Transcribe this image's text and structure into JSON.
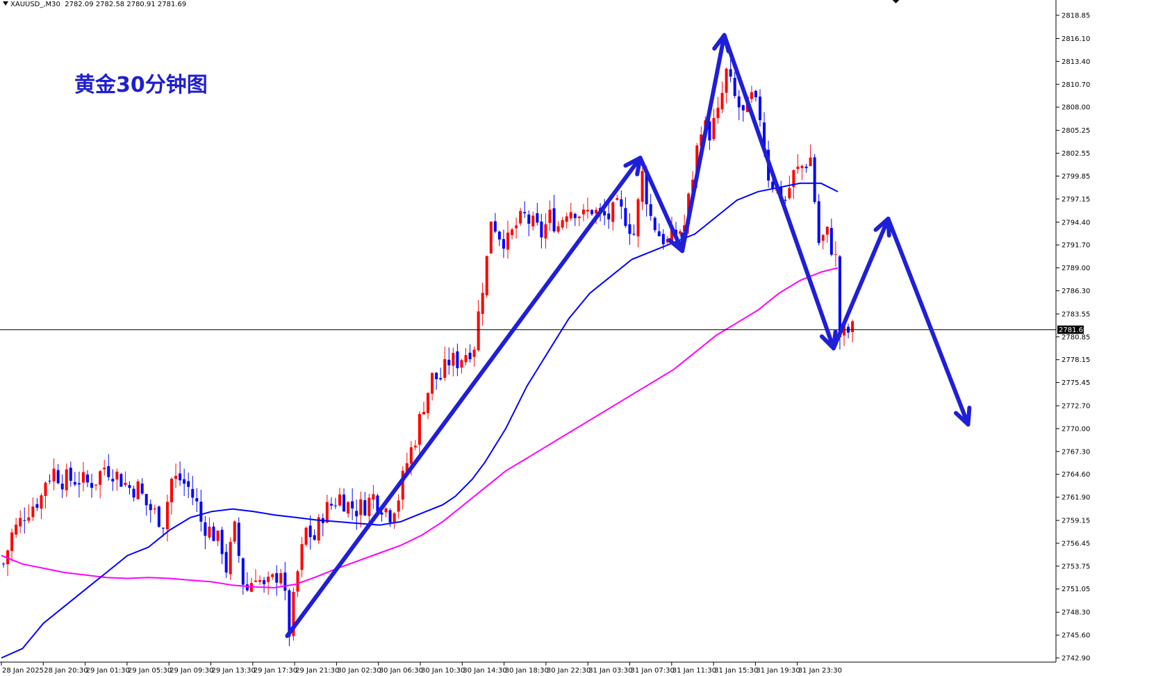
{
  "header": {
    "symbol": "XAUUSD_,M30",
    "ohlc": "2782.09 2782.58 2780.91 2781.69"
  },
  "annotation_title": "黄金30分钟图",
  "colors": {
    "background": "#ffffff",
    "bull_candle": "#ff0000",
    "bear_candle": "#0000ff",
    "ma_fast": "#0000ff",
    "ma_slow": "#ff00ff",
    "projection_arrows": "#1f1fd8",
    "current_price_line": "#000000"
  },
  "chart_data": {
    "type": "candlestick",
    "symbol": "XAUUSD_",
    "timeframe": "M30",
    "ylim": [
      2742.3,
      2820.0
    ],
    "y_ticks": [
      "2818.85",
      "2816.10",
      "2813.40",
      "2810.70",
      "2808.00",
      "2805.25",
      "2802.55",
      "2799.85",
      "2797.15",
      "2794.40",
      "2791.70",
      "2789.00",
      "2786.30",
      "2783.55",
      "2780.85",
      "2778.15",
      "2775.45",
      "2772.70",
      "2770.00",
      "2767.30",
      "2764.60",
      "2761.90",
      "2759.15",
      "2756.45",
      "2753.75",
      "2751.05",
      "2748.30",
      "2745.60",
      "2742.90"
    ],
    "current_price": "2781.69",
    "x_labels": [
      "28 Jan 2025",
      "28 Jan 20:30",
      "29 Jan 01:30",
      "29 Jan 05:30",
      "29 Jan 09:30",
      "29 Jan 13:30",
      "29 Jan 17:30",
      "29 Jan 21:30",
      "30 Jan 02:30",
      "30 Jan 06:30",
      "30 Jan 10:30",
      "30 Jan 14:30",
      "30 Jan 18:30",
      "30 Jan 22:30",
      "31 Jan 03:30",
      "31 Jan 07:30",
      "31 Jan 11:30",
      "31 Jan 15:30",
      "31 Jan 19:30",
      "31 Jan 23:30"
    ],
    "price_path": [
      [
        0,
        2754
      ],
      [
        2,
        2757.5
      ],
      [
        4,
        2759
      ],
      [
        5,
        2760
      ],
      [
        7,
        2761
      ],
      [
        9,
        2762
      ],
      [
        10,
        2764
      ],
      [
        12,
        2765
      ],
      [
        14,
        2764
      ],
      [
        16,
        2764
      ],
      [
        18,
        2764
      ],
      [
        20,
        2763.5
      ],
      [
        22,
        2764
      ],
      [
        24,
        2765.5
      ],
      [
        26,
        2765
      ],
      [
        28,
        2764
      ],
      [
        30,
        2763
      ],
      [
        32,
        2763
      ],
      [
        34,
        2761
      ],
      [
        36,
        2760
      ],
      [
        38,
        2759
      ],
      [
        40,
        2764
      ],
      [
        42,
        2764
      ],
      [
        44,
        2763
      ],
      [
        46,
        2761
      ],
      [
        47,
        2759
      ],
      [
        48,
        2758.5
      ],
      [
        50,
        2757.5
      ],
      [
        52,
        2756
      ],
      [
        53,
        2753.5
      ],
      [
        55,
        2758
      ],
      [
        57,
        2752
      ],
      [
        58,
        2751
      ],
      [
        60,
        2753
      ],
      [
        62,
        2751
      ],
      [
        64,
        2752
      ],
      [
        66,
        2753.5
      ],
      [
        68,
        2746
      ],
      [
        70,
        2753
      ],
      [
        72,
        2758
      ],
      [
        74,
        2757
      ],
      [
        76,
        2760
      ],
      [
        78,
        2761
      ],
      [
        80,
        2762
      ],
      [
        82,
        2761
      ],
      [
        84,
        2760.5
      ],
      [
        86,
        2761
      ],
      [
        88,
        2762
      ],
      [
        90,
        2761
      ],
      [
        92,
        2760
      ],
      [
        94,
        2762
      ],
      [
        96,
        2766
      ],
      [
        98,
        2769
      ],
      [
        100,
        2773
      ],
      [
        102,
        2776
      ],
      [
        104,
        2776
      ],
      [
        106,
        2778
      ],
      [
        108,
        2778
      ],
      [
        110,
        2779
      ],
      [
        112,
        2780
      ],
      [
        114,
        2787
      ],
      [
        115,
        2790
      ],
      [
        116,
        2795
      ],
      [
        118,
        2793
      ],
      [
        120,
        2792
      ],
      [
        122,
        2794
      ],
      [
        124,
        2795
      ],
      [
        126,
        2794
      ],
      [
        128,
        2793
      ],
      [
        130,
        2795
      ],
      [
        132,
        2794
      ],
      [
        134,
        2796
      ],
      [
        136,
        2796
      ],
      [
        138,
        2795
      ],
      [
        140,
        2796
      ],
      [
        142,
        2795
      ],
      [
        144,
        2795
      ],
      [
        146,
        2796
      ],
      [
        148,
        2795
      ],
      [
        150,
        2793
      ],
      [
        152,
        2800
      ],
      [
        154,
        2795
      ],
      [
        156,
        2793
      ],
      [
        158,
        2792
      ],
      [
        160,
        2793
      ],
      [
        162,
        2794
      ],
      [
        164,
        2800
      ],
      [
        166,
        2806
      ],
      [
        168,
        2805
      ],
      [
        170,
        2807
      ],
      [
        172,
        2812
      ],
      [
        174,
        2809
      ],
      [
        176,
        2807
      ],
      [
        178,
        2809
      ],
      [
        180,
        2807
      ],
      [
        182,
        2800
      ],
      [
        184,
        2798
      ],
      [
        186,
        2797
      ],
      [
        188,
        2800
      ],
      [
        190,
        2801
      ],
      [
        192,
        2802
      ],
      [
        194,
        2792
      ],
      [
        196,
        2793
      ],
      [
        198,
        2790
      ],
      [
        199,
        2781
      ],
      [
        202,
        2781.69
      ]
    ],
    "ma_fast_path": [
      [
        0,
        2742.9
      ],
      [
        5,
        2744
      ],
      [
        10,
        2747
      ],
      [
        15,
        2749
      ],
      [
        20,
        2751
      ],
      [
        25,
        2753
      ],
      [
        30,
        2755
      ],
      [
        35,
        2756
      ],
      [
        40,
        2758
      ],
      [
        45,
        2759.5
      ],
      [
        50,
        2760.2
      ],
      [
        55,
        2760.5
      ],
      [
        60,
        2760.2
      ],
      [
        65,
        2759.8
      ],
      [
        70,
        2759.5
      ],
      [
        75,
        2759.2
      ],
      [
        80,
        2759
      ],
      [
        85,
        2758.8
      ],
      [
        90,
        2758.6
      ],
      [
        95,
        2759
      ],
      [
        100,
        2760
      ],
      [
        105,
        2761
      ],
      [
        108,
        2762
      ],
      [
        110,
        2763
      ],
      [
        112,
        2764
      ],
      [
        115,
        2766
      ],
      [
        120,
        2770
      ],
      [
        125,
        2775
      ],
      [
        130,
        2779
      ],
      [
        135,
        2783
      ],
      [
        140,
        2786
      ],
      [
        145,
        2788
      ],
      [
        150,
        2790
      ],
      [
        155,
        2791
      ],
      [
        160,
        2792
      ],
      [
        165,
        2793
      ],
      [
        170,
        2795
      ],
      [
        175,
        2797
      ],
      [
        180,
        2798
      ],
      [
        185,
        2798.5
      ],
      [
        190,
        2799
      ],
      [
        195,
        2799
      ],
      [
        199,
        2798
      ]
    ],
    "ma_slow_path": [
      [
        0,
        2755
      ],
      [
        5,
        2754
      ],
      [
        10,
        2753.5
      ],
      [
        15,
        2753
      ],
      [
        20,
        2752.7
      ],
      [
        25,
        2752.4
      ],
      [
        30,
        2752.3
      ],
      [
        35,
        2752.4
      ],
      [
        40,
        2752.3
      ],
      [
        45,
        2752.1
      ],
      [
        50,
        2751.9
      ],
      [
        55,
        2751.5
      ],
      [
        60,
        2751.3
      ],
      [
        65,
        2751.2
      ],
      [
        70,
        2751.6
      ],
      [
        75,
        2752.5
      ],
      [
        80,
        2753.5
      ],
      [
        85,
        2754.4
      ],
      [
        90,
        2755.3
      ],
      [
        95,
        2756.2
      ],
      [
        100,
        2757.4
      ],
      [
        105,
        2759
      ],
      [
        110,
        2761
      ],
      [
        115,
        2763
      ],
      [
        120,
        2765
      ],
      [
        125,
        2766.5
      ],
      [
        130,
        2768
      ],
      [
        135,
        2769.5
      ],
      [
        140,
        2771
      ],
      [
        145,
        2772.5
      ],
      [
        150,
        2774
      ],
      [
        155,
        2775.5
      ],
      [
        160,
        2777
      ],
      [
        165,
        2779
      ],
      [
        170,
        2781
      ],
      [
        175,
        2782.5
      ],
      [
        180,
        2784
      ],
      [
        185,
        2786
      ],
      [
        190,
        2787.5
      ],
      [
        195,
        2788.5
      ],
      [
        199,
        2789
      ]
    ],
    "projection_arrows": [
      [
        [
          68,
          2745.5
        ],
        [
          152,
          2802
        ]
      ],
      [
        [
          152,
          2802
        ],
        [
          162,
          2791
        ]
      ],
      [
        [
          162,
          2791
        ],
        [
          172,
          2816.5
        ]
      ],
      [
        [
          172,
          2816.5
        ],
        [
          198,
          2779.5
        ]
      ],
      [
        [
          198,
          2779.5
        ],
        [
          211,
          2794.8
        ]
      ],
      [
        [
          211,
          2794.8
        ],
        [
          230,
          2770.5
        ]
      ]
    ]
  }
}
